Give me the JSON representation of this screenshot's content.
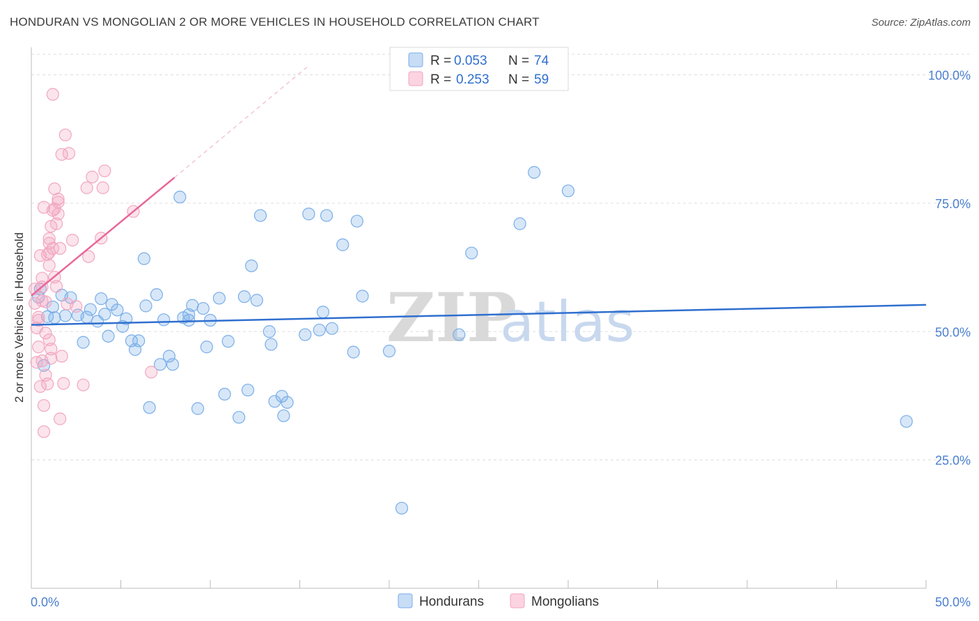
{
  "title": "HONDURAN VS MONGOLIAN 2 OR MORE VEHICLES IN HOUSEHOLD CORRELATION CHART",
  "source": "Source: ZipAtlas.com",
  "colors": {
    "blue": "#7aaee8",
    "blue_line": "#2f6fcf",
    "pink": "#f2a6c0",
    "pink_line": "#e8689a",
    "tick_text": "#4a7fd0",
    "grid": "#dddddd"
  },
  "legend": {
    "r_label": "R =",
    "n_label": "N =",
    "series": [
      {
        "name": "Hondurans",
        "r": "0.053",
        "n": "74"
      },
      {
        "name": "Mongolians",
        "r": "0.253",
        "n": "59"
      }
    ]
  },
  "watermark": {
    "zip": "ZIP",
    "atlas": "atlas"
  },
  "chart_data": {
    "type": "scatter",
    "title": "HONDURAN VS MONGOLIAN 2 OR MORE VEHICLES IN HOUSEHOLD CORRELATION CHART",
    "xlabel": "",
    "ylabel": "2 or more Vehicles in Household",
    "xlim": [
      0,
      50
    ],
    "ylim": [
      0,
      104
    ],
    "x_tick_labels": [
      "0.0%",
      "50.0%"
    ],
    "y_ticks": [
      25,
      50,
      75,
      100
    ],
    "y_tick_labels": [
      "25.0%",
      "50.0%",
      "75.0%",
      "100.0%"
    ],
    "series": [
      {
        "name": "Hondurans",
        "trend": {
          "x0": 0,
          "y0": 51.3,
          "x1": 50,
          "y1": 55.2
        },
        "points": [
          [
            0.4,
            56.7
          ],
          [
            0.7,
            43.4
          ],
          [
            0.9,
            52.9
          ],
          [
            1.2,
            54.8
          ],
          [
            1.3,
            52.7
          ],
          [
            1.7,
            57.1
          ],
          [
            1.9,
            53.1
          ],
          [
            2.2,
            56.6
          ],
          [
            2.6,
            53.2
          ],
          [
            2.9,
            47.9
          ],
          [
            3.1,
            52.8
          ],
          [
            3.3,
            54.3
          ],
          [
            3.7,
            52.0
          ],
          [
            3.9,
            56.4
          ],
          [
            4.1,
            53.4
          ],
          [
            4.3,
            49.1
          ],
          [
            4.5,
            55.3
          ],
          [
            4.8,
            54.2
          ],
          [
            5.1,
            51.0
          ],
          [
            5.3,
            52.5
          ],
          [
            5.6,
            48.2
          ],
          [
            5.8,
            46.5
          ],
          [
            6.0,
            48.2
          ],
          [
            6.3,
            64.2
          ],
          [
            6.4,
            55.0
          ],
          [
            6.6,
            35.2
          ],
          [
            7.0,
            57.2
          ],
          [
            7.2,
            43.6
          ],
          [
            7.4,
            52.3
          ],
          [
            7.7,
            45.2
          ],
          [
            7.9,
            43.6
          ],
          [
            8.3,
            76.2
          ],
          [
            8.5,
            52.7
          ],
          [
            8.8,
            53.3
          ],
          [
            8.8,
            52.2
          ],
          [
            9.0,
            55.1
          ],
          [
            9.3,
            35.0
          ],
          [
            9.6,
            54.5
          ],
          [
            9.8,
            47.0
          ],
          [
            10.0,
            52.2
          ],
          [
            10.5,
            56.5
          ],
          [
            10.8,
            37.8
          ],
          [
            11.0,
            48.1
          ],
          [
            11.6,
            33.3
          ],
          [
            11.9,
            56.8
          ],
          [
            12.1,
            38.6
          ],
          [
            12.3,
            62.8
          ],
          [
            12.6,
            56.1
          ],
          [
            12.8,
            72.6
          ],
          [
            13.3,
            50.0
          ],
          [
            13.4,
            47.5
          ],
          [
            13.6,
            36.4
          ],
          [
            14.0,
            37.4
          ],
          [
            14.1,
            33.6
          ],
          [
            14.3,
            36.2
          ],
          [
            15.3,
            49.4
          ],
          [
            15.5,
            72.9
          ],
          [
            16.1,
            50.3
          ],
          [
            16.3,
            53.8
          ],
          [
            16.5,
            72.6
          ],
          [
            16.8,
            50.6
          ],
          [
            17.4,
            66.9
          ],
          [
            18.0,
            46.0
          ],
          [
            18.2,
            71.5
          ],
          [
            18.5,
            56.9
          ],
          [
            20.0,
            46.2
          ],
          [
            20.7,
            15.6
          ],
          [
            23.9,
            49.4
          ],
          [
            24.6,
            65.3
          ],
          [
            27.3,
            71.0
          ],
          [
            28.1,
            81.0
          ],
          [
            30.0,
            77.4
          ],
          [
            48.9,
            32.5
          ],
          [
            0.5,
            58.3
          ]
        ]
      },
      {
        "name": "Mongolians",
        "trend": {
          "x0": 0,
          "y0": 57.0,
          "x1": 8.0,
          "y1": 80.0,
          "dash_to": {
            "x": 15.4,
            "y": 101.5
          }
        },
        "points": [
          [
            0.2,
            55.5
          ],
          [
            0.2,
            58.3
          ],
          [
            0.3,
            44.0
          ],
          [
            0.3,
            50.7
          ],
          [
            0.4,
            52.2
          ],
          [
            0.4,
            47.0
          ],
          [
            0.5,
            39.3
          ],
          [
            0.5,
            64.8
          ],
          [
            0.6,
            58.7
          ],
          [
            0.6,
            60.4
          ],
          [
            0.6,
            44.3
          ],
          [
            0.7,
            74.2
          ],
          [
            0.7,
            35.6
          ],
          [
            0.7,
            30.5
          ],
          [
            0.8,
            55.8
          ],
          [
            0.8,
            49.7
          ],
          [
            0.9,
            65.0
          ],
          [
            0.9,
            39.8
          ],
          [
            1.0,
            62.9
          ],
          [
            1.0,
            65.4
          ],
          [
            1.0,
            67.2
          ],
          [
            1.0,
            68.1
          ],
          [
            1.1,
            70.5
          ],
          [
            1.1,
            46.6
          ],
          [
            1.1,
            44.8
          ],
          [
            1.2,
            96.2
          ],
          [
            1.2,
            73.6
          ],
          [
            1.2,
            66.2
          ],
          [
            1.3,
            77.8
          ],
          [
            1.3,
            73.9
          ],
          [
            1.4,
            71.0
          ],
          [
            1.4,
            58.8
          ],
          [
            1.5,
            75.2
          ],
          [
            1.5,
            75.8
          ],
          [
            1.5,
            72.9
          ],
          [
            1.6,
            66.2
          ],
          [
            1.6,
            33.0
          ],
          [
            1.7,
            45.2
          ],
          [
            1.7,
            84.5
          ],
          [
            1.8,
            39.9
          ],
          [
            1.9,
            88.3
          ],
          [
            2.0,
            55.4
          ],
          [
            2.1,
            84.7
          ],
          [
            2.3,
            67.8
          ],
          [
            2.5,
            54.9
          ],
          [
            2.9,
            39.6
          ],
          [
            3.1,
            78.0
          ],
          [
            3.2,
            64.6
          ],
          [
            3.4,
            80.1
          ],
          [
            3.9,
            68.2
          ],
          [
            4.0,
            78.0
          ],
          [
            4.1,
            81.3
          ],
          [
            5.7,
            73.4
          ],
          [
            6.7,
            42.1
          ],
          [
            0.4,
            52.8
          ],
          [
            0.8,
            41.5
          ],
          [
            1.3,
            60.6
          ],
          [
            0.6,
            56.0
          ],
          [
            1.0,
            48.4
          ]
        ]
      }
    ]
  }
}
